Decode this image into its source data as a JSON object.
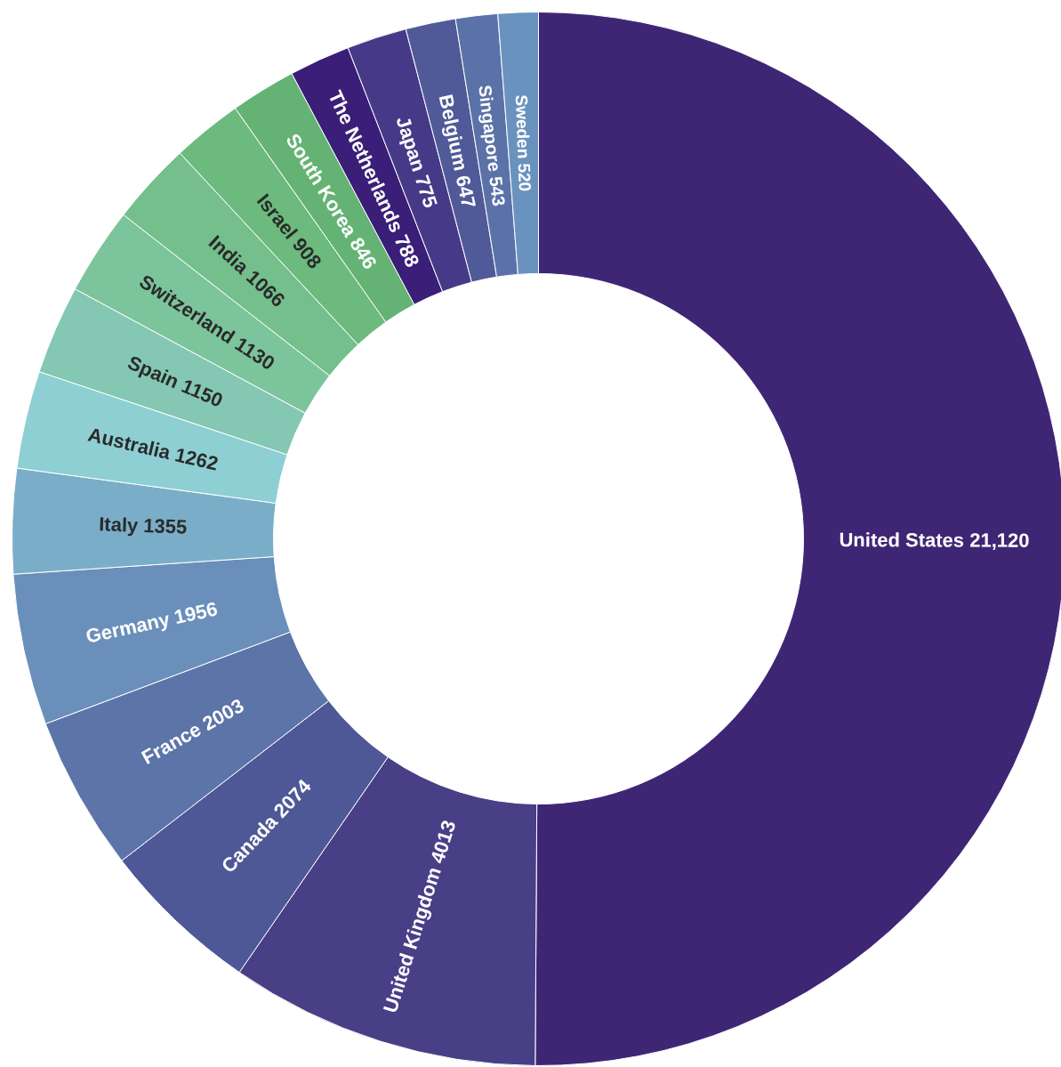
{
  "chart_data": {
    "type": "donut",
    "categories": [
      "United States",
      "United Kingdom",
      "Canada",
      "France",
      "Germany",
      "Italy",
      "Australia",
      "Spain",
      "Switzerland",
      "India",
      "Israel",
      "South Korea",
      "The Netherlands",
      "Japan",
      "Belgium",
      "Singapore",
      "Sweden"
    ],
    "values": [
      21120,
      4013,
      2074,
      2003,
      1956,
      1355,
      1262,
      1150,
      1130,
      1066,
      908,
      846,
      788,
      775,
      647,
      543,
      520
    ],
    "value_labels": [
      "21,120",
      "4013",
      "2074",
      "2003",
      "1956",
      "1355",
      "1262",
      "1150",
      "1130",
      "1066",
      "908",
      "846",
      "788",
      "775",
      "647",
      "543",
      "520"
    ],
    "colors": [
      "#3f2675",
      "#483f86",
      "#4f5896",
      "#5c74a8",
      "#6a8fba",
      "#7aaec8",
      "#8ecfd3",
      "#84c8b4",
      "#7cc49c",
      "#74bf8c",
      "#6cba7e",
      "#64b374",
      "#3a1e78",
      "#463a88",
      "#505a98",
      "#5b72a8",
      "#6a92bf"
    ],
    "legend": false
  }
}
